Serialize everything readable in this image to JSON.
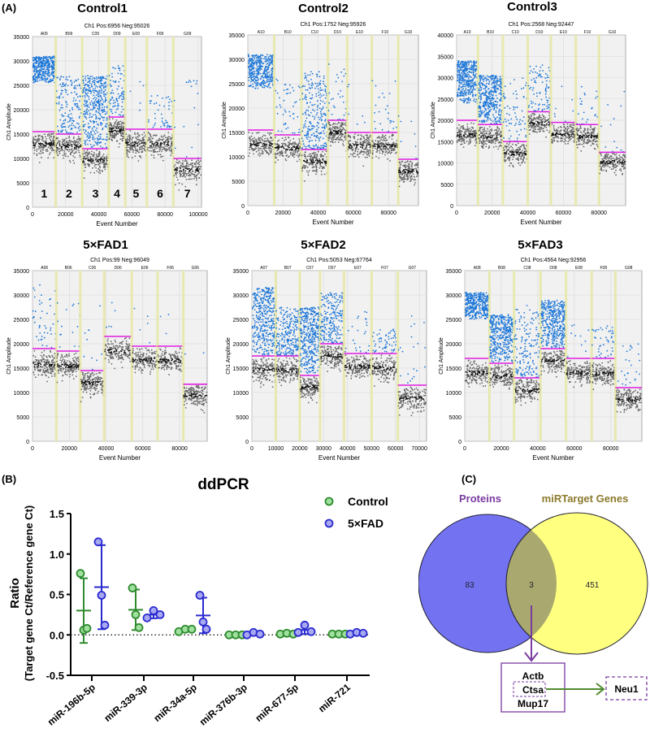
{
  "panel_labels": {
    "a": "(A)",
    "b": "(B)",
    "c": "(C)"
  },
  "colors": {
    "positive": "#1f78d8",
    "negative": "#4a4a4a",
    "threshold": "#e01ee0",
    "well_divider": "#e6e6a0",
    "plot_bg": "#f1f1f1",
    "control": "#2e8b2e",
    "fad": "#2a2ad0",
    "venn_left": "#7373f2",
    "venn_right": "#ffff80",
    "venn_overlap": "#a9a86f",
    "proteins_label": "#7a3aa0",
    "mirtarget_label": "#8c7a2c",
    "arrow_purple": "#7a3aa0",
    "arrow_green": "#4f8a2e"
  },
  "chart_data": [
    {
      "type": "scatter",
      "title": "Control1",
      "header": "Ch1 Pos:6956 Neg:95026",
      "xlabel": "Event Number",
      "ylabel": "Ch1 Amplitude",
      "xlim": [
        0,
        102000
      ],
      "ylim": [
        0,
        35000
      ],
      "xticks": [
        0,
        20000,
        40000,
        60000,
        80000,
        100000
      ],
      "yticks": [
        0,
        5000,
        10000,
        15000,
        20000,
        25000,
        30000,
        35000
      ],
      "well_numbers": [
        "1",
        "2",
        "3",
        "4",
        "5",
        "6",
        "7"
      ],
      "wells": [
        {
          "label": "A09",
          "range": [
            0,
            14000
          ],
          "negative_level": 13000,
          "threshold": 15500,
          "positive": [
            25500,
            31000,
            700
          ]
        },
        {
          "label": "B09",
          "range": [
            14000,
            30000
          ],
          "negative_level": 12500,
          "threshold": 15000,
          "positive": [
            15000,
            27000,
            160
          ]
        },
        {
          "label": "C09",
          "range": [
            30000,
            46000
          ],
          "negative_level": 9600,
          "threshold": 12000,
          "positive": [
            12000,
            27000,
            450
          ]
        },
        {
          "label": "D09",
          "range": [
            46000,
            56000
          ],
          "negative_level": 15800,
          "threshold": 18500,
          "positive": [
            18500,
            29000,
            90
          ]
        },
        {
          "label": "E09",
          "range": [
            56000,
            69000
          ],
          "negative_level": 13000,
          "threshold": 16000,
          "positive": [
            16000,
            28000,
            6
          ]
        },
        {
          "label": "F09",
          "range": [
            69000,
            85000
          ],
          "negative_level": 13000,
          "threshold": 16000,
          "positive": [
            16000,
            23000,
            45
          ]
        },
        {
          "label": "G09",
          "range": [
            85000,
            102000
          ],
          "negative_level": 7700,
          "threshold": 10000,
          "positive": [
            10000,
            26000,
            18
          ]
        }
      ]
    },
    {
      "type": "scatter",
      "title": "Control2",
      "header": "Ch1 Pos:1752 Neg:95926",
      "xlabel": "Event Number",
      "ylabel": "Ch1 Amplitude",
      "xlim": [
        0,
        97000
      ],
      "ylim": [
        0,
        35000
      ],
      "xticks": [
        0,
        20000,
        40000,
        60000,
        80000
      ],
      "yticks": [
        0,
        5000,
        10000,
        15000,
        20000,
        25000,
        30000,
        35000
      ],
      "wells": [
        {
          "label": "A10",
          "range": [
            0,
            15000
          ],
          "negative_level": 12600,
          "threshold": 15500,
          "positive": [
            24000,
            31000,
            450
          ]
        },
        {
          "label": "B10",
          "range": [
            15000,
            30500
          ],
          "negative_level": 11800,
          "threshold": 14500,
          "positive": [
            14500,
            26000,
            50
          ]
        },
        {
          "label": "C10",
          "range": [
            30500,
            45500
          ],
          "negative_level": 9000,
          "threshold": 11500,
          "positive": [
            11500,
            27500,
            260
          ]
        },
        {
          "label": "D10",
          "range": [
            45500,
            56500
          ],
          "negative_level": 15000,
          "threshold": 17500,
          "positive": [
            17500,
            29000,
            30
          ]
        },
        {
          "label": "E10",
          "range": [
            56500,
            70500
          ],
          "negative_level": 12200,
          "threshold": 15000,
          "positive": [
            15000,
            26500,
            6
          ]
        },
        {
          "label": "F10",
          "range": [
            70500,
            85500
          ],
          "negative_level": 12200,
          "threshold": 15000,
          "positive": [
            15000,
            26000,
            25
          ]
        },
        {
          "label": "G10",
          "range": [
            85500,
            97000
          ],
          "negative_level": 7000,
          "threshold": 9500,
          "positive": [
            9500,
            21000,
            8
          ]
        }
      ]
    },
    {
      "type": "scatter",
      "title": "Control3",
      "header": "Ch1 Pos:2568 Neg:92447",
      "xlabel": "Event Number",
      "ylabel": "Ch1 Amplitude",
      "xlim": [
        0,
        95000
      ],
      "ylim": [
        0,
        40000
      ],
      "xticks": [
        0,
        20000,
        40000,
        60000,
        80000
      ],
      "yticks": [
        0,
        5000,
        10000,
        15000,
        20000,
        25000,
        30000,
        35000,
        40000
      ],
      "wells": [
        {
          "label": "A10",
          "range": [
            0,
            12000
          ],
          "negative_level": 16500,
          "threshold": 20000,
          "positive": [
            24000,
            34000,
            500
          ]
        },
        {
          "label": "B10",
          "range": [
            12000,
            26000
          ],
          "negative_level": 16000,
          "threshold": 19000,
          "positive": [
            19000,
            30500,
            500
          ]
        },
        {
          "label": "C10",
          "range": [
            26000,
            40000
          ],
          "negative_level": 12300,
          "threshold": 15000,
          "positive": [
            15000,
            30000,
            70
          ]
        },
        {
          "label": "D10",
          "range": [
            40000,
            53000
          ],
          "negative_level": 19300,
          "threshold": 22000,
          "positive": [
            22000,
            33000,
            90
          ]
        },
        {
          "label": "E10",
          "range": [
            53000,
            67000
          ],
          "negative_level": 16700,
          "threshold": 19500,
          "positive": [
            19500,
            29000,
            8
          ]
        },
        {
          "label": "F10",
          "range": [
            67000,
            80000
          ],
          "negative_level": 16200,
          "threshold": 19000,
          "positive": [
            19000,
            29000,
            25
          ]
        },
        {
          "label": "G10",
          "range": [
            80000,
            95000
          ],
          "negative_level": 10200,
          "threshold": 12500,
          "positive": [
            12500,
            28000,
            12
          ]
        }
      ]
    },
    {
      "type": "scatter",
      "title": "5×FAD1",
      "header": "Ch1 Pos:99 Neg:96049",
      "xlabel": "Event Number",
      "ylabel": "Ch1 Amplitude",
      "xlim": [
        0,
        95000
      ],
      "ylim": [
        0,
        35000
      ],
      "xticks": [
        0,
        20000,
        40000,
        60000,
        80000
      ],
      "yticks": [
        0,
        5000,
        10000,
        15000,
        20000,
        25000,
        30000,
        35000
      ],
      "wells": [
        {
          "label": "A06",
          "range": [
            0,
            13000
          ],
          "negative_level": 15700,
          "threshold": 19000,
          "positive": [
            19000,
            32500,
            45
          ]
        },
        {
          "label": "B06",
          "range": [
            13000,
            26000
          ],
          "negative_level": 15500,
          "threshold": 18500,
          "positive": [
            18500,
            29000,
            15
          ]
        },
        {
          "label": "C06",
          "range": [
            26000,
            39000
          ],
          "negative_level": 12000,
          "threshold": 14500,
          "positive": [
            14500,
            28000,
            10
          ]
        },
        {
          "label": "D06",
          "range": [
            39000,
            54000
          ],
          "negative_level": 18500,
          "threshold": 21500,
          "positive": [
            21500,
            30000,
            5
          ]
        },
        {
          "label": "E06",
          "range": [
            54000,
            68000
          ],
          "negative_level": 16700,
          "threshold": 19500,
          "positive": [
            19500,
            27500,
            5
          ]
        },
        {
          "label": "F06",
          "range": [
            68000,
            82000
          ],
          "negative_level": 16500,
          "threshold": 19500,
          "positive": [
            19500,
            26000,
            3
          ]
        },
        {
          "label": "G06",
          "range": [
            82000,
            95000
          ],
          "negative_level": 9500,
          "threshold": 11700,
          "positive": [
            11700,
            20000,
            2
          ]
        }
      ]
    },
    {
      "type": "scatter",
      "title": "5×FAD2",
      "header": "Ch1 Pos:5053 Neg:67764",
      "xlabel": "Event Number",
      "ylabel": "Ch1 Amplitude",
      "xlim": [
        0,
        73000
      ],
      "ylim": [
        0,
        35000
      ],
      "xticks": [
        0,
        10000,
        20000,
        30000,
        40000,
        50000,
        60000,
        70000
      ],
      "yticks": [
        0,
        5000,
        10000,
        15000,
        20000,
        25000,
        30000,
        35000
      ],
      "wells": [
        {
          "label": "A07",
          "range": [
            0,
            10000
          ],
          "negative_level": 14600,
          "threshold": 17500,
          "positive": [
            17500,
            31500,
            800
          ]
        },
        {
          "label": "B07",
          "range": [
            10000,
            20000
          ],
          "negative_level": 14500,
          "threshold": 17500,
          "positive": [
            17500,
            27500,
            250
          ]
        },
        {
          "label": "C07",
          "range": [
            20000,
            28500
          ],
          "negative_level": 11100,
          "threshold": 13500,
          "positive": [
            13500,
            27500,
            450
          ]
        },
        {
          "label": "D07",
          "range": [
            28500,
            38500
          ],
          "negative_level": 17500,
          "threshold": 20000,
          "positive": [
            20000,
            30500,
            220
          ]
        },
        {
          "label": "E07",
          "range": [
            38500,
            50000
          ],
          "negative_level": 15300,
          "threshold": 18000,
          "positive": [
            18000,
            27000,
            25
          ]
        },
        {
          "label": "F07",
          "range": [
            50000,
            61000
          ],
          "negative_level": 15000,
          "threshold": 18000,
          "positive": [
            18000,
            23000,
            60
          ]
        },
        {
          "label": "G07",
          "range": [
            61000,
            73000
          ],
          "negative_level": 8800,
          "threshold": 11500,
          "positive": [
            11500,
            26000,
            20
          ]
        }
      ]
    },
    {
      "type": "scatter",
      "title": "5×FAD3",
      "header": "Ch1 Pos:4564 Neg:92956",
      "xlabel": "Event Number",
      "ylabel": "Ch1 Amplitude",
      "xlim": [
        0,
        97000
      ],
      "ylim": [
        0,
        35000
      ],
      "xticks": [
        0,
        20000,
        40000,
        60000,
        80000
      ],
      "yticks": [
        0,
        5000,
        10000,
        15000,
        20000,
        25000,
        30000,
        35000
      ],
      "wells": [
        {
          "label": "A08",
          "range": [
            0,
            13500
          ],
          "negative_level": 14000,
          "threshold": 17000,
          "positive": [
            25000,
            30500,
            650
          ]
        },
        {
          "label": "B08",
          "range": [
            13500,
            27000
          ],
          "negative_level": 13400,
          "threshold": 16000,
          "positive": [
            16000,
            26000,
            650
          ]
        },
        {
          "label": "C08",
          "range": [
            27000,
            41500
          ],
          "negative_level": 10400,
          "threshold": 13000,
          "positive": [
            13000,
            28000,
            160
          ]
        },
        {
          "label": "D08",
          "range": [
            41500,
            55500
          ],
          "negative_level": 16500,
          "threshold": 19000,
          "positive": [
            19000,
            29000,
            500
          ]
        },
        {
          "label": "E08",
          "range": [
            55500,
            69500
          ],
          "negative_level": 14000,
          "threshold": 17000,
          "positive": [
            17000,
            27000,
            10
          ]
        },
        {
          "label": "F08",
          "range": [
            69500,
            82500
          ],
          "negative_level": 13800,
          "threshold": 17000,
          "positive": [
            17000,
            24000,
            45
          ]
        },
        {
          "label": "G08",
          "range": [
            82500,
            97000
          ],
          "negative_level": 8500,
          "threshold": 11000,
          "positive": [
            11000,
            20000,
            25
          ]
        }
      ]
    },
    {
      "type": "scatter",
      "title": "ddPCR",
      "ylabel": "Ratio",
      "ylabel2": "(Target gene Ct/Reference gene Ct)",
      "ylim": [
        -0.5,
        1.5
      ],
      "yticks": [
        "-0.5",
        "0.0",
        "0.5",
        "1.0",
        "1.5"
      ],
      "categories": [
        "miR-196b-5p",
        "miR-339-3p",
        "miR-34a-5p",
        "miR-376b-3p",
        "miR-677-5p",
        "miR-721"
      ],
      "legend_position": "top-right",
      "series": [
        {
          "name": "Control",
          "values": [
            [
              0.76,
              0.06,
              0.08
            ],
            [
              0.58,
              0.25,
              0.09
            ],
            [
              0.04,
              0.07,
              0.07
            ],
            [
              0.0,
              0.0,
              0.0
            ],
            [
              0.01,
              0.02,
              0.01
            ],
            [
              0.01,
              0.01,
              0.01
            ]
          ],
          "mean": [
            0.3,
            0.31,
            0.06,
            0.0,
            0.01,
            0.01
          ],
          "sd": [
            0.4,
            0.25,
            0.02,
            0.0,
            0.005,
            0.0
          ]
        },
        {
          "name": "5×FAD",
          "values": [
            [
              1.15,
              0.49,
              0.12
            ],
            [
              0.21,
              0.3,
              0.25
            ],
            [
              0.49,
              0.16,
              0.07
            ],
            [
              0.0,
              0.03,
              0.01
            ],
            [
              0.03,
              0.12,
              0.04
            ],
            [
              0.01,
              0.03,
              0.02
            ]
          ],
          "mean": [
            0.59,
            0.25,
            0.24,
            0.01,
            0.06,
            0.02
          ],
          "sd": [
            0.52,
            0.045,
            0.22,
            0.015,
            0.05,
            0.01
          ]
        }
      ]
    }
  ],
  "venn": {
    "left_label": "Proteins",
    "right_label": "miRTarget Genes",
    "left_only": "83",
    "overlap": "3",
    "right_only": "451",
    "overlap_genes": [
      "Actb",
      "Ctsa",
      "Mup17"
    ],
    "target": "Neu1"
  }
}
